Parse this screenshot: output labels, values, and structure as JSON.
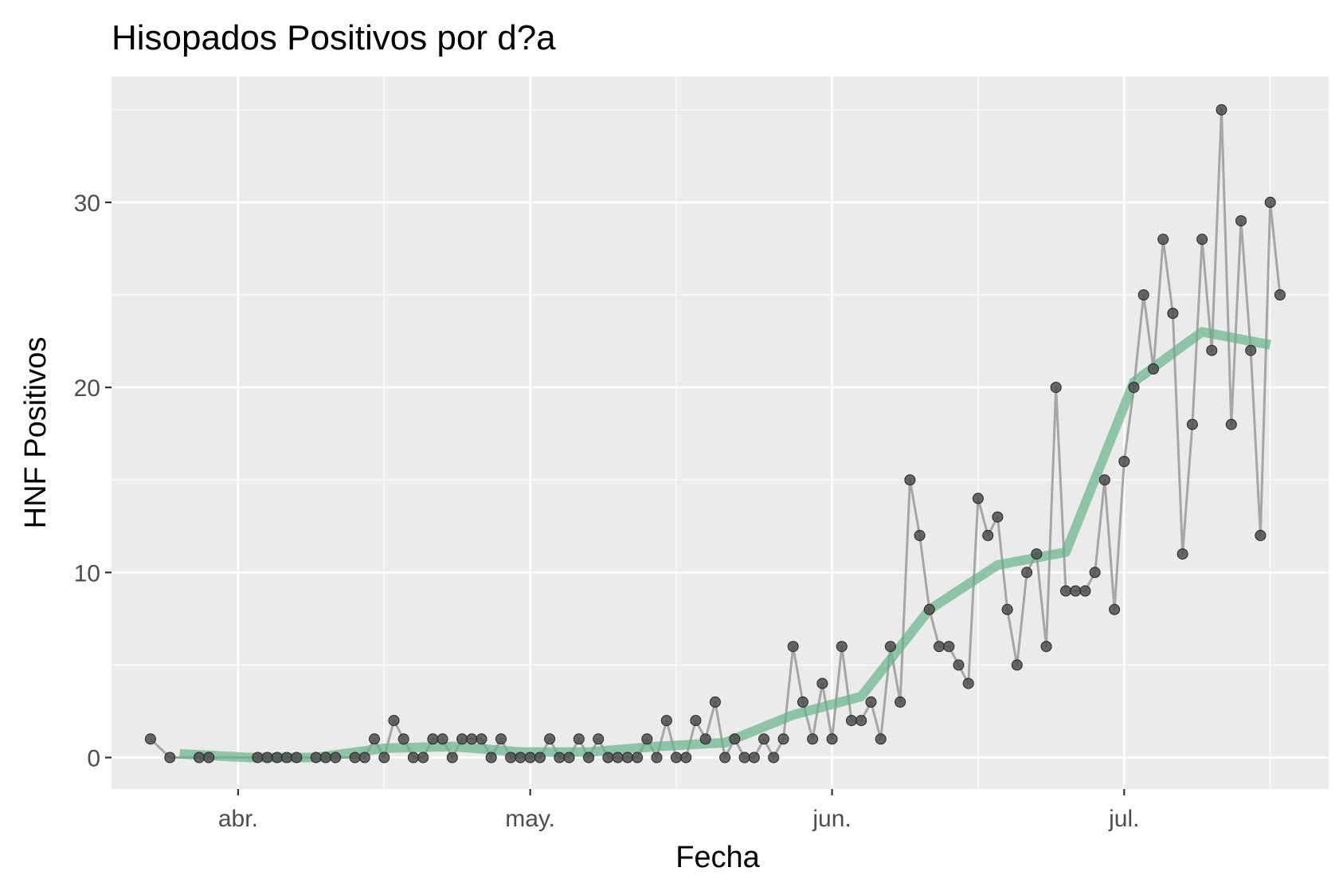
{
  "chart_data": {
    "type": "line",
    "title": "Hisopados Positivos por d?a",
    "xlabel": "Fecha",
    "ylabel": "HNF Positivos",
    "x_axis": {
      "kind": "date",
      "range": [
        "2020-03-19",
        "2020-07-22"
      ],
      "ticks": [
        {
          "value": "2020-04-01",
          "label": "abr."
        },
        {
          "value": "2020-05-01",
          "label": "may."
        },
        {
          "value": "2020-06-01",
          "label": "jun."
        },
        {
          "value": "2020-07-01",
          "label": "jul."
        }
      ],
      "minor_ticks": [
        "2020-04-16",
        "2020-05-16",
        "2020-06-16",
        "2020-07-16"
      ]
    },
    "y_axis": {
      "range": [
        -1.7,
        36.8
      ],
      "ticks": [
        0,
        10,
        20,
        30
      ],
      "minor_ticks": [
        5,
        15,
        25,
        35
      ]
    },
    "grid": true,
    "background": "#ebebeb",
    "series": [
      {
        "kind": "daily",
        "line_color": "#a6a6a6",
        "point_color": "#4d4d4d",
        "points": [
          [
            "2020-03-23",
            1
          ],
          [
            "2020-03-25",
            0
          ],
          [
            "2020-03-28",
            0
          ],
          [
            "2020-03-29",
            0
          ],
          [
            "2020-04-03",
            0
          ],
          [
            "2020-04-04",
            0
          ],
          [
            "2020-04-05",
            0
          ],
          [
            "2020-04-06",
            0
          ],
          [
            "2020-04-07",
            0
          ],
          [
            "2020-04-09",
            0
          ],
          [
            "2020-04-10",
            0
          ],
          [
            "2020-04-11",
            0
          ],
          [
            "2020-04-13",
            0
          ],
          [
            "2020-04-14",
            0
          ],
          [
            "2020-04-15",
            1
          ],
          [
            "2020-04-16",
            0
          ],
          [
            "2020-04-17",
            2
          ],
          [
            "2020-04-18",
            1
          ],
          [
            "2020-04-19",
            0
          ],
          [
            "2020-04-20",
            0
          ],
          [
            "2020-04-21",
            1
          ],
          [
            "2020-04-22",
            1
          ],
          [
            "2020-04-23",
            0
          ],
          [
            "2020-04-24",
            1
          ],
          [
            "2020-04-25",
            1
          ],
          [
            "2020-04-26",
            1
          ],
          [
            "2020-04-27",
            0
          ],
          [
            "2020-04-28",
            1
          ],
          [
            "2020-04-29",
            0
          ],
          [
            "2020-04-30",
            0
          ],
          [
            "2020-05-01",
            0
          ],
          [
            "2020-05-02",
            0
          ],
          [
            "2020-05-03",
            1
          ],
          [
            "2020-05-04",
            0
          ],
          [
            "2020-05-05",
            0
          ],
          [
            "2020-05-06",
            1
          ],
          [
            "2020-05-07",
            0
          ],
          [
            "2020-05-08",
            1
          ],
          [
            "2020-05-09",
            0
          ],
          [
            "2020-05-10",
            0
          ],
          [
            "2020-05-11",
            0
          ],
          [
            "2020-05-12",
            0
          ],
          [
            "2020-05-13",
            1
          ],
          [
            "2020-05-14",
            0
          ],
          [
            "2020-05-15",
            2
          ],
          [
            "2020-05-16",
            0
          ],
          [
            "2020-05-17",
            0
          ],
          [
            "2020-05-18",
            2
          ],
          [
            "2020-05-19",
            1
          ],
          [
            "2020-05-20",
            3
          ],
          [
            "2020-05-21",
            0
          ],
          [
            "2020-05-22",
            1
          ],
          [
            "2020-05-23",
            0
          ],
          [
            "2020-05-24",
            0
          ],
          [
            "2020-05-25",
            1
          ],
          [
            "2020-05-26",
            0
          ],
          [
            "2020-05-27",
            1
          ],
          [
            "2020-05-28",
            6
          ],
          [
            "2020-05-29",
            3
          ],
          [
            "2020-05-30",
            1
          ],
          [
            "2020-05-31",
            4
          ],
          [
            "2020-06-01",
            1
          ],
          [
            "2020-06-02",
            6
          ],
          [
            "2020-06-03",
            2
          ],
          [
            "2020-06-04",
            2
          ],
          [
            "2020-06-05",
            3
          ],
          [
            "2020-06-06",
            1
          ],
          [
            "2020-06-07",
            6
          ],
          [
            "2020-06-08",
            3
          ],
          [
            "2020-06-09",
            15
          ],
          [
            "2020-06-10",
            12
          ],
          [
            "2020-06-11",
            8
          ],
          [
            "2020-06-12",
            6
          ],
          [
            "2020-06-13",
            6
          ],
          [
            "2020-06-14",
            5
          ],
          [
            "2020-06-15",
            4
          ],
          [
            "2020-06-16",
            14
          ],
          [
            "2020-06-17",
            12
          ],
          [
            "2020-06-18",
            13
          ],
          [
            "2020-06-19",
            8
          ],
          [
            "2020-06-20",
            5
          ],
          [
            "2020-06-21",
            10
          ],
          [
            "2020-06-22",
            11
          ],
          [
            "2020-06-23",
            6
          ],
          [
            "2020-06-24",
            20
          ],
          [
            "2020-06-25",
            9
          ],
          [
            "2020-06-26",
            9
          ],
          [
            "2020-06-27",
            9
          ],
          [
            "2020-06-28",
            10
          ],
          [
            "2020-06-29",
            15
          ],
          [
            "2020-06-30",
            8
          ],
          [
            "2020-07-01",
            16
          ],
          [
            "2020-07-02",
            20
          ],
          [
            "2020-07-03",
            25
          ],
          [
            "2020-07-04",
            21
          ],
          [
            "2020-07-05",
            28
          ],
          [
            "2020-07-06",
            24
          ],
          [
            "2020-07-07",
            11
          ],
          [
            "2020-07-08",
            18
          ],
          [
            "2020-07-09",
            28
          ],
          [
            "2020-07-10",
            22
          ],
          [
            "2020-07-11",
            35
          ],
          [
            "2020-07-12",
            18
          ],
          [
            "2020-07-13",
            29
          ],
          [
            "2020-07-14",
            22
          ],
          [
            "2020-07-15",
            12
          ],
          [
            "2020-07-16",
            30
          ],
          [
            "2020-07-17",
            25
          ]
        ]
      },
      {
        "kind": "weekly-average",
        "line_color": "#66b28a",
        "points": [
          [
            "2020-03-26",
            0.2
          ],
          [
            "2020-04-02",
            0.0
          ],
          [
            "2020-04-09",
            0.0
          ],
          [
            "2020-04-16",
            0.5
          ],
          [
            "2020-04-23",
            0.6
          ],
          [
            "2020-04-30",
            0.3
          ],
          [
            "2020-05-07",
            0.3
          ],
          [
            "2020-05-14",
            0.6
          ],
          [
            "2020-05-21",
            0.8
          ],
          [
            "2020-05-28",
            2.3
          ],
          [
            "2020-06-04",
            3.3
          ],
          [
            "2020-06-11",
            8.0
          ],
          [
            "2020-06-18",
            10.4
          ],
          [
            "2020-06-25",
            11.1
          ],
          [
            "2020-07-02",
            20.3
          ],
          [
            "2020-07-09",
            23.0
          ],
          [
            "2020-07-16",
            22.3
          ]
        ]
      }
    ]
  }
}
